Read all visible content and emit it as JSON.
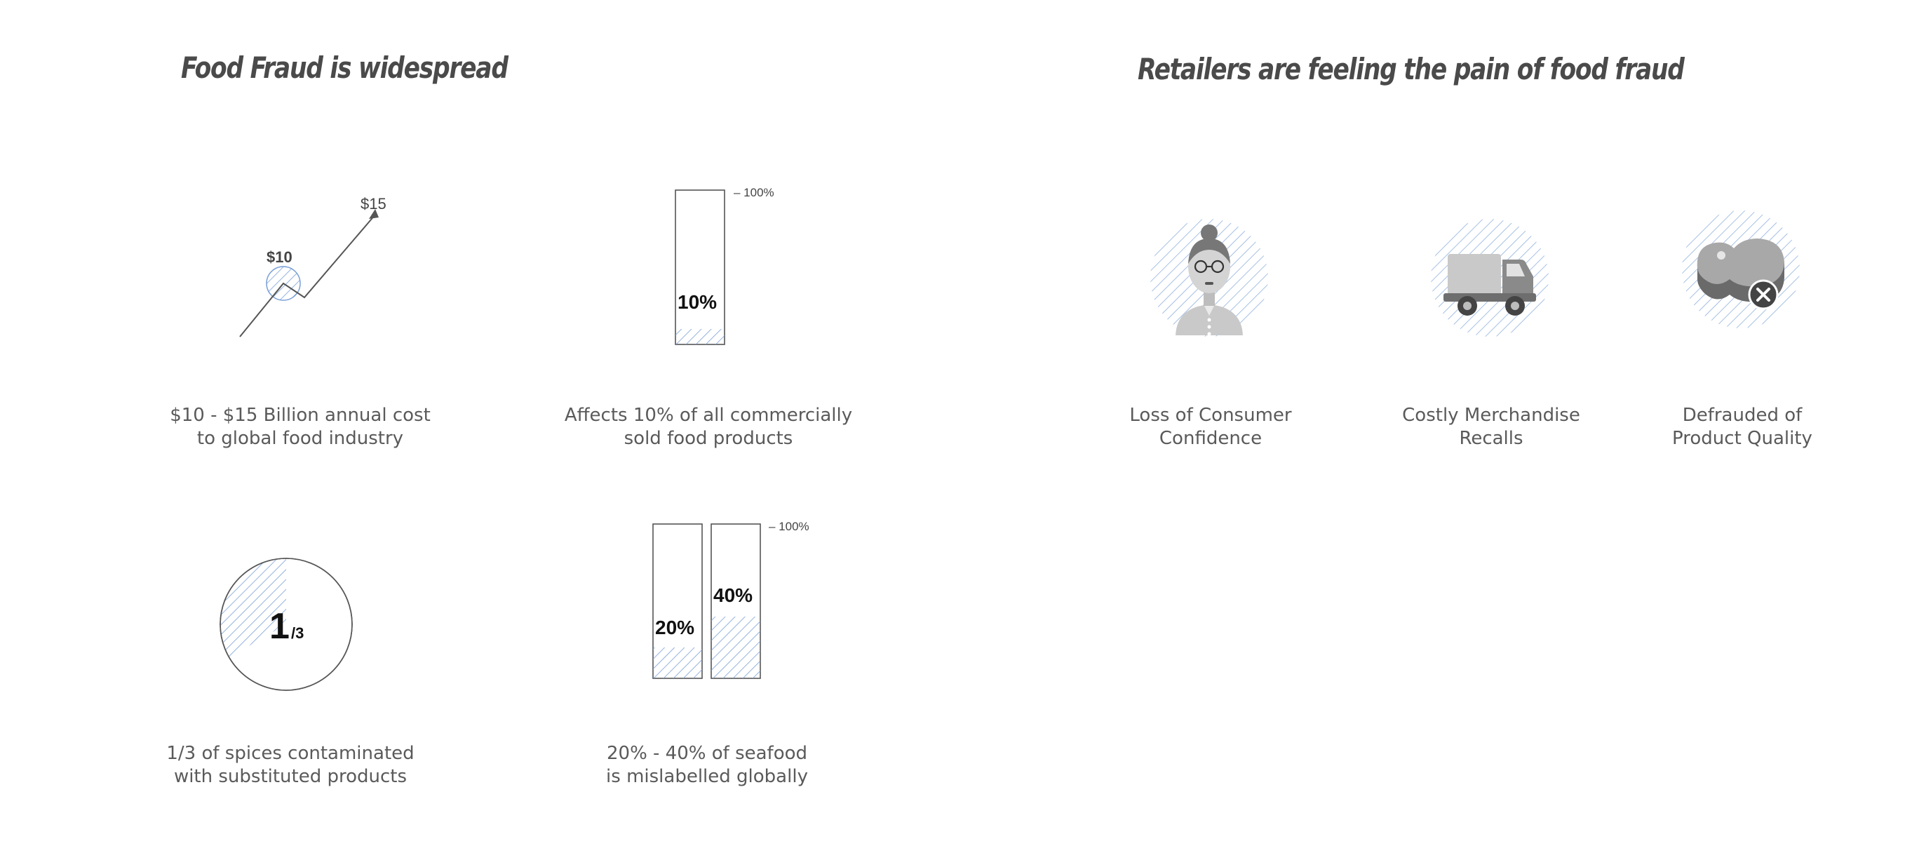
{
  "left_section": {
    "heading": "Food Fraud is widespread",
    "stats": [
      {
        "low_label": "$10",
        "high_label": "$15",
        "caption_line1": "$10 - $15 Billion annual cost",
        "caption_line2": "to global food industry"
      },
      {
        "value_label": "10%",
        "value_fraction": 0.1,
        "scale_label": "– 100%",
        "caption_line1": "Affects 10% of all commercially",
        "caption_line2": "sold food products"
      },
      {
        "numerator": "1",
        "denominator": "/3",
        "value_fraction": 0.3333,
        "caption_line1": "1/3 of spices contaminated",
        "caption_line2": "with substituted products"
      },
      {
        "bars": [
          {
            "label": "20%",
            "value_fraction": 0.2
          },
          {
            "label": "40%",
            "value_fraction": 0.4
          }
        ],
        "scale_label": "– 100%",
        "caption_line1": "20% - 40% of seafood",
        "caption_line2": "is mislabelled globally"
      }
    ]
  },
  "right_section": {
    "heading": "Retailers are feeling the pain of food fraud",
    "items": [
      {
        "icon": "consumer-woman-icon",
        "caption_line1": "Loss of Consumer",
        "caption_line2": "Confidence"
      },
      {
        "icon": "delivery-truck-icon",
        "caption_line1": "Costly Merchandise",
        "caption_line2": "Recalls"
      },
      {
        "icon": "steak-rejected-icon",
        "caption_line1": "Defrauded of",
        "caption_line2": "Product Quality"
      }
    ]
  },
  "colors": {
    "hatch": "#7a9fd6",
    "outline": "#555555",
    "text": "#5a5a5a",
    "icon_gray": "#9a9a9a"
  }
}
